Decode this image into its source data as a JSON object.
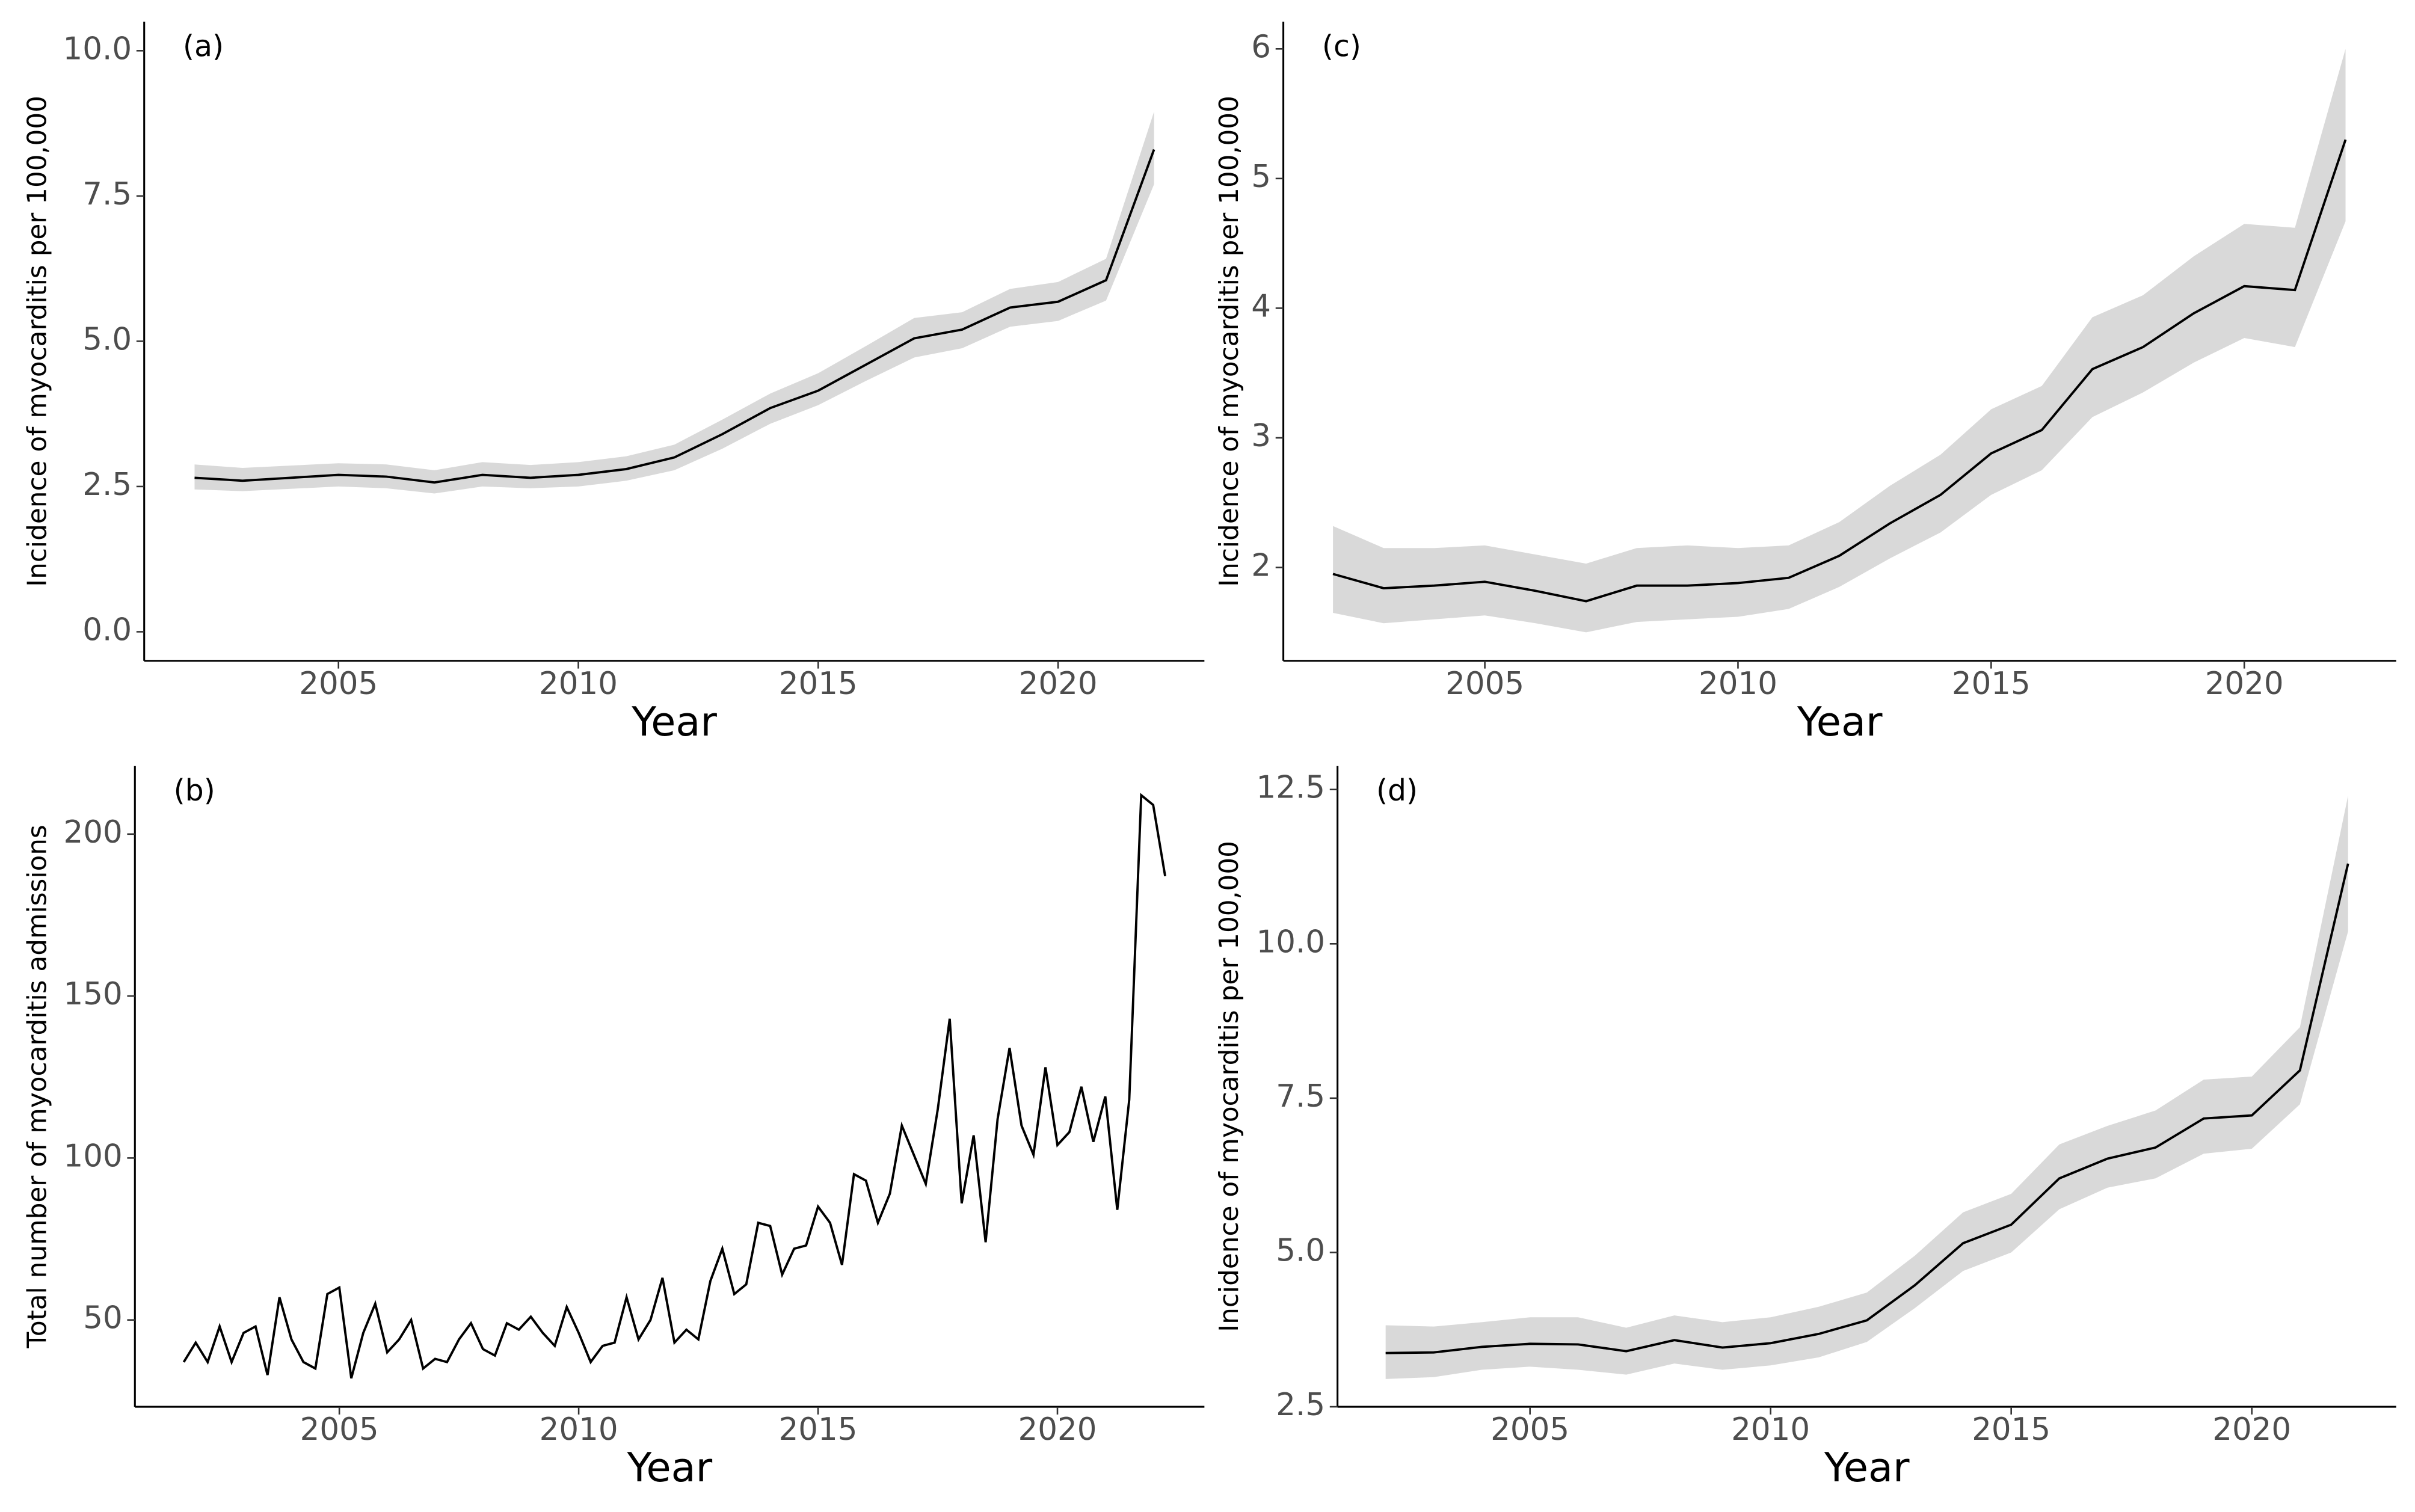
{
  "chart_data": [
    {
      "type": "line",
      "annotation": "(a)",
      "xlabel": "Year",
      "ylabel": "Incidence of myocarditis per 100,000",
      "x": [
        2002,
        2003,
        2004,
        2005,
        2006,
        2007,
        2008,
        2009,
        2010,
        2011,
        2012,
        2013,
        2014,
        2015,
        2016,
        2017,
        2018,
        2019,
        2020,
        2021,
        2022
      ],
      "values": [
        2.65,
        2.6,
        2.65,
        2.7,
        2.67,
        2.57,
        2.7,
        2.65,
        2.7,
        2.8,
        3.0,
        3.4,
        3.85,
        4.15,
        4.6,
        5.05,
        5.2,
        5.58,
        5.68,
        6.05,
        8.3
      ],
      "lower": [
        2.45,
        2.42,
        2.46,
        2.5,
        2.47,
        2.38,
        2.5,
        2.47,
        2.5,
        2.6,
        2.78,
        3.15,
        3.58,
        3.9,
        4.32,
        4.72,
        4.88,
        5.25,
        5.35,
        5.7,
        7.7
      ],
      "upper": [
        2.88,
        2.82,
        2.86,
        2.9,
        2.88,
        2.78,
        2.92,
        2.87,
        2.92,
        3.02,
        3.22,
        3.65,
        4.1,
        4.45,
        4.92,
        5.4,
        5.5,
        5.9,
        6.02,
        6.42,
        8.95
      ],
      "color": "#000000",
      "band_color": "#d9d9d9",
      "grid": false,
      "xlim": [
        2000.95,
        2023.05
      ],
      "xticks": [
        2005,
        2010,
        2015,
        2020
      ],
      "ylim": [
        -0.5,
        10.5
      ],
      "yticks": [
        {
          "value": 0,
          "label": "0.0"
        },
        2.5,
        {
          "value": 5,
          "label": "5.0"
        },
        7.5,
        {
          "value": 10,
          "label": "10.0"
        }
      ]
    },
    {
      "type": "line",
      "annotation": "(b)",
      "xlabel": "Year",
      "ylabel": "Total number of myocarditis admissions",
      "x": [
        2001.75,
        2002,
        2002.25,
        2002.5,
        2002.75,
        2003,
        2003.25,
        2003.5,
        2003.75,
        2004,
        2004.25,
        2004.5,
        2004.75,
        2005,
        2005.25,
        2005.5,
        2005.75,
        2006,
        2006.25,
        2006.5,
        2006.75,
        2007,
        2007.25,
        2007.5,
        2007.75,
        2008,
        2008.25,
        2008.5,
        2008.75,
        2009,
        2009.25,
        2009.5,
        2009.75,
        2010,
        2010.25,
        2010.5,
        2010.75,
        2011,
        2011.25,
        2011.5,
        2011.75,
        2012,
        2012.25,
        2012.5,
        2012.75,
        2013,
        2013.25,
        2013.5,
        2013.75,
        2014,
        2014.25,
        2014.5,
        2014.75,
        2015,
        2015.25,
        2015.5,
        2015.75,
        2016,
        2016.25,
        2016.5,
        2016.75,
        2017,
        2017.25,
        2017.5,
        2017.75,
        2018,
        2018.25,
        2018.5,
        2018.75,
        2019,
        2019.25,
        2019.5,
        2019.75,
        2020,
        2020.25,
        2020.5,
        2020.75,
        2021,
        2021.25,
        2021.5,
        2021.75,
        2022,
        2022.25
      ],
      "values": [
        37,
        43,
        37,
        48,
        37,
        46,
        48,
        33,
        57,
        44,
        37,
        35,
        58,
        60,
        32,
        46,
        55,
        40,
        44,
        50,
        35,
        38,
        37,
        44,
        49,
        41,
        39,
        49,
        47,
        51,
        46,
        42,
        54,
        46,
        37,
        42,
        43,
        57,
        44,
        50,
        63,
        43,
        47,
        44,
        62,
        72,
        58,
        61,
        80,
        79,
        64,
        72,
        73,
        85,
        80,
        67,
        95,
        93,
        80,
        89,
        110,
        101,
        92,
        115,
        143,
        86,
        107,
        74,
        112,
        134,
        110,
        101,
        128,
        104,
        108,
        122,
        105,
        119,
        84,
        118,
        212,
        209,
        187
      ],
      "color": "#000000",
      "grid": false,
      "xlim": [
        2000.73,
        2023.07
      ],
      "xticks": [
        2005,
        2010,
        2015,
        2020
      ],
      "ylim": [
        23.2,
        221
      ],
      "yticks": [
        50,
        100,
        150,
        200
      ]
    },
    {
      "type": "line",
      "annotation": "(c)",
      "xlabel": "Year",
      "ylabel": "Incidence of myocarditis per 100,000",
      "x": [
        2002,
        2003,
        2004,
        2005,
        2006,
        2007,
        2008,
        2009,
        2010,
        2011,
        2012,
        2013,
        2014,
        2015,
        2016,
        2017,
        2018,
        2019,
        2020,
        2021,
        2022
      ],
      "values": [
        1.95,
        1.84,
        1.86,
        1.89,
        1.82,
        1.74,
        1.86,
        1.86,
        1.88,
        1.92,
        2.09,
        2.34,
        2.56,
        2.88,
        3.06,
        3.53,
        3.7,
        3.96,
        4.17,
        4.14,
        5.3
      ],
      "lower": [
        1.65,
        1.57,
        1.6,
        1.63,
        1.57,
        1.5,
        1.58,
        1.6,
        1.62,
        1.68,
        1.85,
        2.07,
        2.27,
        2.56,
        2.75,
        3.16,
        3.35,
        3.58,
        3.77,
        3.7,
        4.67
      ],
      "upper": [
        2.32,
        2.15,
        2.15,
        2.17,
        2.1,
        2.03,
        2.15,
        2.17,
        2.15,
        2.17,
        2.35,
        2.63,
        2.87,
        3.22,
        3.4,
        3.93,
        4.1,
        4.4,
        4.65,
        4.62,
        6.0
      ],
      "color": "#000000",
      "band_color": "#d9d9d9",
      "grid": false,
      "xlim": [
        2001.02,
        2023.0
      ],
      "xticks": [
        2005,
        2010,
        2015,
        2020
      ],
      "ylim": [
        1.28,
        6.21
      ],
      "yticks": [
        2,
        3,
        4,
        5,
        6
      ]
    },
    {
      "type": "line",
      "annotation": "(d)",
      "xlabel": "Year",
      "ylabel": "Incidence of myocarditis per 100,000",
      "x": [
        2002,
        2003,
        2004,
        2005,
        2006,
        2007,
        2008,
        2009,
        2010,
        2011,
        2012,
        2013,
        2014,
        2015,
        2016,
        2017,
        2018,
        2019,
        2020,
        2021,
        2022
      ],
      "values": [
        3.37,
        3.38,
        3.47,
        3.52,
        3.51,
        3.4,
        3.58,
        3.46,
        3.53,
        3.68,
        3.9,
        4.47,
        5.15,
        5.45,
        6.2,
        6.52,
        6.7,
        7.17,
        7.22,
        7.95,
        11.3
      ],
      "lower": [
        2.95,
        2.98,
        3.1,
        3.15,
        3.1,
        3.02,
        3.2,
        3.1,
        3.17,
        3.3,
        3.55,
        4.1,
        4.7,
        5.0,
        5.7,
        6.05,
        6.2,
        6.6,
        6.68,
        7.4,
        10.2
      ],
      "upper": [
        3.82,
        3.8,
        3.87,
        3.95,
        3.95,
        3.78,
        3.98,
        3.87,
        3.95,
        4.12,
        4.35,
        4.95,
        5.65,
        5.95,
        6.75,
        7.05,
        7.3,
        7.8,
        7.85,
        8.65,
        12.4
      ],
      "color": "#000000",
      "band_color": "#d9d9d9",
      "grid": false,
      "xlim": [
        2001.0,
        2023.0
      ],
      "xticks": [
        2005,
        2010,
        2015,
        2020
      ],
      "ylim": [
        2.5,
        12.88
      ],
      "yticks": [
        2.5,
        {
          "value": 5,
          "label": "5.0"
        },
        7.5,
        {
          "value": 10,
          "label": "10.0"
        },
        12.5
      ]
    }
  ]
}
